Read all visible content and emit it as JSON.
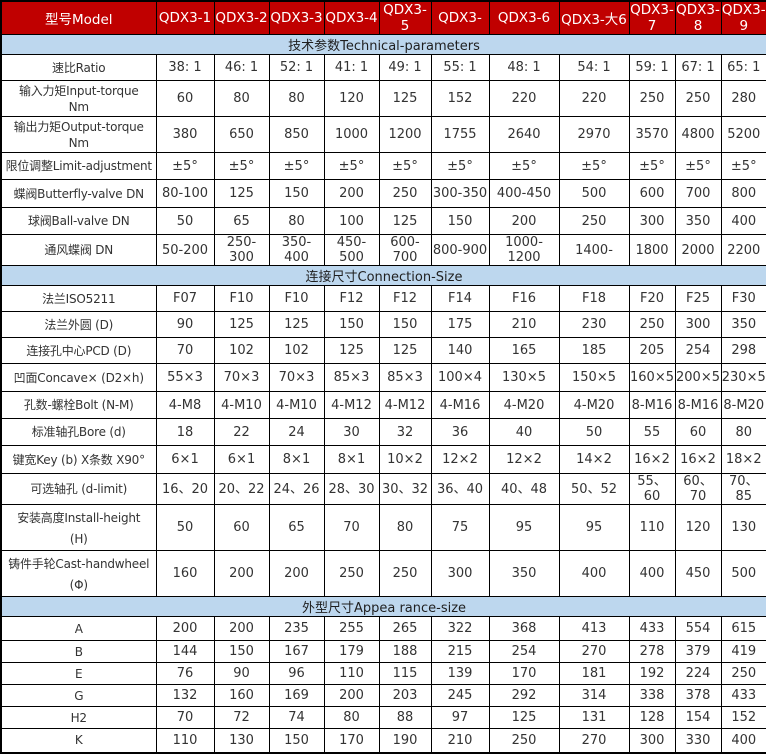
{
  "colors": {
    "header_bg": "#c00000",
    "header_text": "#ffffff",
    "section_bg": "#bdd7ee",
    "border": "#000000",
    "cell_text": "#333333"
  },
  "table": {
    "corner_label": "型号Model",
    "models": [
      "QDX3-1",
      "QDX3-2",
      "QDX3-3",
      "QDX3-4",
      "QDX3-5",
      "QDX3-",
      "QDX3-6",
      "QDX3-大6",
      "QDX3-7",
      "QDX3-8",
      "QDX3-9"
    ],
    "sections": [
      {
        "title": "技术参数Technical-parameters",
        "rows": [
          {
            "label": "速比Ratio",
            "values": [
              "38: 1",
              "46: 1",
              "52: 1",
              "41: 1",
              "49: 1",
              "55: 1",
              "48: 1",
              "54: 1",
              "59: 1",
              "67: 1",
              "65: 1"
            ]
          },
          {
            "label": "输入力矩Input-torque",
            "sub": "Nm",
            "values": [
              "60",
              "80",
              "80",
              "120",
              "125",
              "152",
              "220",
              "220",
              "250",
              "250",
              "280"
            ]
          },
          {
            "label": "输出力矩Output-torque",
            "sub": "Nm",
            "values": [
              "380",
              "650",
              "850",
              "1000",
              "1200",
              "1755",
              "2640",
              "2970",
              "3570",
              "4800",
              "5200"
            ]
          },
          {
            "label": "限位调整Limit-adjustment",
            "values": [
              "±5°",
              "±5°",
              "±5°",
              "±5°",
              "±5°",
              "±5°",
              "±5°",
              "±5°",
              "±5°",
              "±5°",
              "±5°"
            ]
          },
          {
            "label": "蝶阀Butterfly-valve DN",
            "values": [
              "80-100",
              "125",
              "150",
              "200",
              "250",
              "300-350",
              "400-450",
              "500",
              "600",
              "700",
              "800"
            ]
          },
          {
            "label": "球阀Ball-valve DN",
            "values": [
              "50",
              "65",
              "80",
              "100",
              "125",
              "150",
              "200",
              "250",
              "300",
              "350",
              "400"
            ]
          },
          {
            "label": "通风蝶阀  DN",
            "values": [
              "50-200",
              "250-300",
              "350-400",
              "450-500",
              "600-700",
              "800-900",
              "1000-1200",
              "1400-",
              "1800",
              "2000",
              "2200"
            ]
          }
        ]
      },
      {
        "title": "连接尺寸Connection-Size",
        "rows": [
          {
            "label": "法兰ISO5211",
            "values": [
              "F07",
              "F10",
              "F10",
              "F12",
              "F12",
              "F14",
              "F16",
              "F18",
              "F20",
              "F25",
              "F30"
            ]
          },
          {
            "label": "法兰外圆 (D)",
            "values": [
              "90",
              "125",
              "125",
              "150",
              "150",
              "175",
              "210",
              "230",
              "250",
              "300",
              "350"
            ]
          },
          {
            "label": "连接孔中心PCD (D)",
            "values": [
              "70",
              "102",
              "102",
              "125",
              "125",
              "140",
              "165",
              "185",
              "205",
              "254",
              "298"
            ]
          },
          {
            "label": "凹面Concave× (D2×h)",
            "values": [
              "55×3",
              "70×3",
              "70×3",
              "85×3",
              "85×3",
              "100×4",
              "130×5",
              "150×5",
              "160×5",
              "200×5",
              "230×5"
            ]
          },
          {
            "label": "孔数-螺栓Bolt (N-M)",
            "values": [
              "4-M8",
              "4-M10",
              "4-M10",
              "4-M12",
              "4-M12",
              "4-M16",
              "4-M20",
              "4-M20",
              "8-M16",
              "8-M16",
              "8-M20"
            ]
          },
          {
            "label": "标准轴孔Bore (d)",
            "values": [
              "18",
              "22",
              "24",
              "30",
              "32",
              "36",
              "40",
              "50",
              "55",
              "60",
              "80"
            ]
          },
          {
            "label": "键宽Key (b) X条数 X90°",
            "values": [
              "6×1",
              "6×1",
              "8×1",
              "8×1",
              "10×2",
              "12×2",
              "12×2",
              "14×2",
              "16×2",
              "16×2",
              "18×2"
            ]
          },
          {
            "label": "可选轴孔 (d-limit)",
            "values": [
              "16、20",
              "20、22",
              "24、26",
              "28、30",
              "30、32",
              "36、40",
              "40、48",
              "50、52",
              "55、60",
              "60、70",
              "70、85"
            ]
          },
          {
            "label": "安装高度Install-height",
            "sub": "(H)",
            "clip": true,
            "values": [
              "50",
              "60",
              "65",
              "70",
              "80",
              "75",
              "95",
              "95",
              "110",
              "120",
              "130"
            ]
          },
          {
            "label": "铸件手轮Cast-handwheel",
            "sub": "(Φ)",
            "clip": true,
            "values": [
              "160",
              "200",
              "200",
              "250",
              "250",
              "300",
              "350",
              "400",
              "400",
              "450",
              "500"
            ]
          }
        ]
      },
      {
        "title": "外型尺寸Appea rance-size",
        "rows": [
          {
            "label": "A",
            "values": [
              "200",
              "200",
              "235",
              "255",
              "265",
              "322",
              "368",
              "413",
              "433",
              "554",
              "615"
            ]
          },
          {
            "label": "B",
            "values": [
              "144",
              "150",
              "167",
              "179",
              "188",
              "215",
              "254",
              "270",
              "278",
              "379",
              "419"
            ]
          },
          {
            "label": "E",
            "values": [
              "76",
              "90",
              "96",
              "110",
              "115",
              "139",
              "170",
              "181",
              "192",
              "224",
              "250"
            ]
          },
          {
            "label": "G",
            "values": [
              "132",
              "160",
              "169",
              "200",
              "203",
              "245",
              "292",
              "314",
              "338",
              "378",
              "433"
            ]
          },
          {
            "label": "H2",
            "values": [
              "70",
              "72",
              "74",
              "80",
              "88",
              "97",
              "125",
              "131",
              "128",
              "154",
              "152"
            ]
          },
          {
            "label": "K",
            "values": [
              "110",
              "130",
              "150",
              "170",
              "190",
              "210",
              "250",
              "270",
              "300",
              "330",
              "400"
            ]
          }
        ]
      }
    ]
  }
}
